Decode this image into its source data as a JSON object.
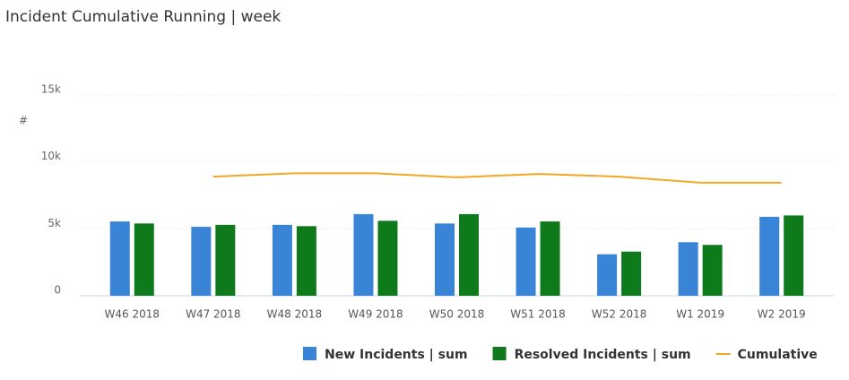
{
  "chart_data": {
    "type": "bar-line",
    "title": "Incident Cumulative Running | week",
    "y_label": "#",
    "categories": [
      "W46 2018",
      "W47 2018",
      "W48 2018",
      "W49 2018",
      "W50 2018",
      "W51 2018",
      "W52 2018",
      "W1 2019",
      "W2 2019"
    ],
    "series": [
      {
        "name": "New Incidents | sum",
        "type": "bar",
        "color": "#3a84d8",
        "values": [
          5550,
          5150,
          5300,
          6100,
          5400,
          5100,
          3100,
          4000,
          5900
        ]
      },
      {
        "name": "Resolved Incidents | sum",
        "type": "bar",
        "color": "#0f7a1c",
        "values": [
          5400,
          5300,
          5200,
          5600,
          6100,
          5550,
          3300,
          3800,
          6000
        ]
      },
      {
        "name": "Cumulative",
        "type": "line",
        "color": "#f5a623",
        "values": [
          null,
          8900,
          9150,
          9150,
          8850,
          9100,
          8900,
          8450,
          8450
        ]
      }
    ],
    "ylim": [
      0,
      15000
    ],
    "yticks": [
      0,
      {
        "value": 5000,
        "label": "5k"
      },
      {
        "value": 10000,
        "label": "10k"
      },
      {
        "value": 15000,
        "label": "15k"
      }
    ],
    "grid": true,
    "legend": "bottom-right"
  }
}
